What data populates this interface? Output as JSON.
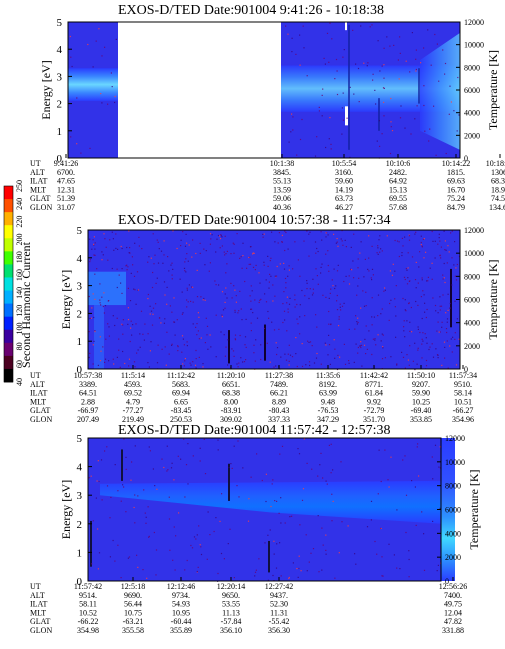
{
  "colorbar": {
    "label": "Second Harmonic Current",
    "ticks": [
      "40",
      "60",
      "80",
      "100",
      "120",
      "140",
      "160",
      "180",
      "200",
      "220",
      "240",
      "250"
    ],
    "colors": [
      "#000000",
      "#4b0020",
      "#6a0070",
      "#3a00a0",
      "#0020ff",
      "#0070ff",
      "#00b0ff",
      "#00e0e0",
      "#00e070",
      "#40ff00",
      "#c0ff00",
      "#ffff00",
      "#ffb000",
      "#ff5000",
      "#ff0000"
    ]
  },
  "chart_data": [
    {
      "type": "heatmap",
      "title": "EXOS-D/TED    Date:901004   9:41:26 - 10:18:38",
      "ylabel": "Energy [eV]",
      "y2label": "Temperature [K]",
      "ylim": [
        0,
        5
      ],
      "y2lim": [
        0,
        12000
      ],
      "yticks": [
        "0",
        "1",
        "2",
        "3",
        "4",
        "5"
      ],
      "y2ticks": [
        "0",
        "2000",
        "4000",
        "6000",
        "8000",
        "10000",
        "12000"
      ],
      "x": [
        "9:41:26",
        "10:1:38",
        "10:5:54",
        "10:10:6",
        "10:14:22",
        "10:18:38"
      ],
      "orbit_labels": [
        "UT",
        "ALT",
        "ILAT",
        "MLT",
        "GLAT",
        "GLON"
      ],
      "orbit_columns": [
        [
          "9:41:26",
          "6700.",
          "47.65",
          "12.31",
          "51.39",
          "31.07"
        ],
        [
          "10:1:38",
          "3845.",
          "55.13",
          "13.59",
          "59.06",
          "40.36"
        ],
        [
          "10:5:54",
          "3160.",
          "59.60",
          "14.19",
          "63.73",
          "46.27"
        ],
        [
          "10:10:6",
          "2482.",
          "64.92",
          "15.13",
          "69.55",
          "57.68"
        ],
        [
          "10:14:22",
          "1815.",
          "69.63",
          "16.70",
          "75.24",
          "84.79"
        ],
        [
          "10:18:38",
          "1306.",
          "68.33",
          "18.91",
          "74.53",
          "134.67"
        ]
      ]
    },
    {
      "type": "heatmap",
      "title": "EXOS-D/TED   Date:901004   10:57:38 - 11:57:34",
      "ylabel": "Energy [eV]",
      "y2label": "Temperature [K]",
      "ylim": [
        0,
        5
      ],
      "y2lim": [
        0,
        12000
      ],
      "yticks": [
        "0",
        "1",
        "2",
        "3",
        "4",
        "5"
      ],
      "y2ticks": [
        "0",
        "2000",
        "4000",
        "6000",
        "8000",
        "10000",
        "12000"
      ],
      "x": [
        "10:57:38",
        "11:5:14",
        "11:12:42",
        "11:20:10",
        "11:27:38",
        "11:35:6",
        "11:42:42",
        "11:50:10",
        "11:57:34"
      ],
      "orbit_labels": [
        "UT",
        "ALT",
        "ILAT",
        "MLT",
        "GLAT",
        "GLON"
      ],
      "orbit_columns": [
        [
          "10:57:38",
          "3389.",
          "64.51",
          "2.88",
          "-66.97",
          "207.49"
        ],
        [
          "11:5:14",
          "4593.",
          "69.52",
          "4.79",
          "-77.27",
          "219.49"
        ],
        [
          "11:12:42",
          "5683.",
          "69.94",
          "6.65",
          "-83.45",
          "250.53"
        ],
        [
          "11:20:10",
          "6651.",
          "68.38",
          "8.00",
          "-83.91",
          "309.02"
        ],
        [
          "11:27:38",
          "7489.",
          "66.21",
          "8.89",
          "-80.43",
          "337.33"
        ],
        [
          "11:35:6",
          "8192.",
          "63.99",
          "9.48",
          "-76.53",
          "347.29"
        ],
        [
          "11:42:42",
          "8771.",
          "61.84",
          "9.92",
          "-72.79",
          "351.70"
        ],
        [
          "11:50:10",
          "9207.",
          "59.90",
          "10.25",
          "-69.40",
          "353.85"
        ],
        [
          "11:57:34",
          "9510.",
          "58.14",
          "10.51",
          "-66.27",
          "354.96"
        ]
      ]
    },
    {
      "type": "heatmap",
      "title": "EXOS-D/TED    Date:901004   11:57:42 - 12:57:38",
      "ylabel": "Energy [eV]",
      "y2label": "Temperature [K]",
      "ylim": [
        0,
        5
      ],
      "y2lim": [
        0,
        12000
      ],
      "yticks": [
        "0",
        "1",
        "2",
        "3",
        "4",
        "5"
      ],
      "y2ticks": [
        "0",
        "2000",
        "4000",
        "6000",
        "8000",
        "10000",
        "12000"
      ],
      "x": [
        "11:57:42",
        "12:5:18",
        "12:12:46",
        "12:20:14",
        "12:27:42",
        "12:56:26"
      ],
      "orbit_labels": [
        "UT",
        "ALT",
        "ILAT",
        "MLT",
        "GLAT",
        "GLON"
      ],
      "orbit_columns": [
        [
          "11:57:42",
          "9514.",
          "58.11",
          "10.52",
          "-66.22",
          "354.98"
        ],
        [
          "12:5:18",
          "9690.",
          "56.44",
          "10.75",
          "-63.21",
          "355.58"
        ],
        [
          "12:12:46",
          "9734.",
          "54.93",
          "10.95",
          "-60.44",
          "355.89"
        ],
        [
          "12:20:14",
          "9650.",
          "53.55",
          "11.13",
          "-57.84",
          "356.10"
        ],
        [
          "12:27:42",
          "9437.",
          "52.30",
          "11.31",
          "-55.42",
          "356.30"
        ],
        [
          "12:56:26",
          "7400.",
          "49.75",
          "12.04",
          "47.82",
          "331.88"
        ]
      ]
    }
  ]
}
